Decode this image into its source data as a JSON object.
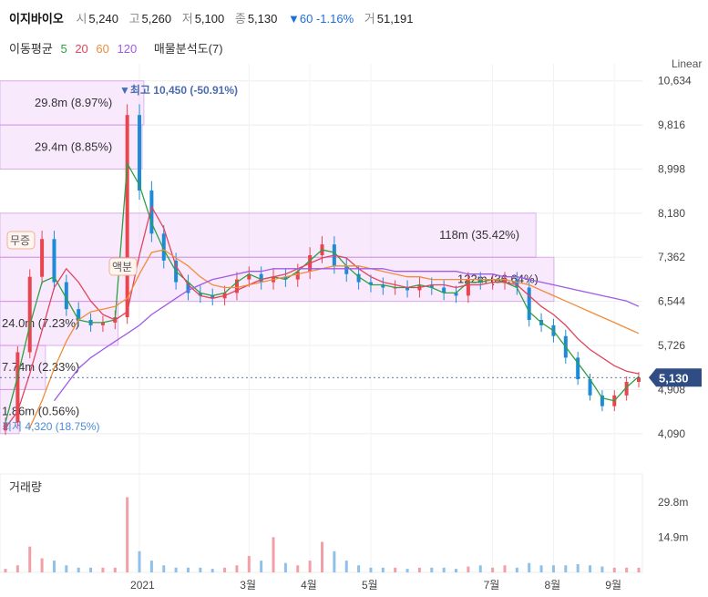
{
  "header": {
    "name": "이지바이오",
    "open_label": "시",
    "open": "5,240",
    "high_label": "고",
    "high": "5,260",
    "low_label": "저",
    "low": "5,100",
    "close_label": "종",
    "close": "5,130",
    "change": "▼60 -1.16%",
    "volume_label": "거",
    "volume": "51,191"
  },
  "ma_legend": {
    "title": "이동평균",
    "periods": [
      {
        "label": "5",
        "color": "#2ea043"
      },
      {
        "label": "20",
        "color": "#e0455c"
      },
      {
        "label": "60",
        "color": "#f08c3c"
      },
      {
        "label": "120",
        "color": "#a05ae6"
      }
    ],
    "profile_label": "매물분석도(7)"
  },
  "chart_data": {
    "type": "candlestick",
    "scale_label": "Linear",
    "yticks": [
      "10,634",
      "9,816",
      "8,998",
      "8,180",
      "7,362",
      "6,544",
      "5,726",
      "4,908",
      "4,090"
    ],
    "ylim": [
      3850,
      10950
    ],
    "xticks": [
      "2021",
      "3월",
      "4월",
      "5월",
      "7월",
      "8월",
      "9월"
    ],
    "current_price": "5,130",
    "max_label": "▼최고 10,450 (-50.91%)",
    "min_label": "최저 4,320 (18.75%)",
    "volume_label": "거래량",
    "volume_ticks": [
      "29.8m",
      "14.9m"
    ],
    "volume_ylim": [
      0,
      38
    ],
    "events": [
      "무증",
      "액분"
    ],
    "volume_profile": [
      {
        "label": "29.8m (8.97%)",
        "low": 9816,
        "high": 10634,
        "share": 8.97
      },
      {
        "label": "29.4m (8.85%)",
        "low": 8998,
        "high": 9816,
        "share": 8.85
      },
      {
        "label": "118m (35.42%)",
        "low": 7362,
        "high": 8180,
        "share": 35.42
      },
      {
        "label": "122m (36.64%)",
        "low": 6544,
        "high": 7362,
        "share": 36.64
      },
      {
        "label": "24.0m (7.23%)",
        "low": 5726,
        "high": 6544,
        "share": 7.23
      },
      {
        "label": "7.74m (2.33%)",
        "low": 4908,
        "high": 5726,
        "share": 2.33
      },
      {
        "label": "1.86m (0.56%)",
        "low": 4090,
        "high": 4908,
        "share": 0.56
      }
    ],
    "series": [
      {
        "name": "5",
        "values": [
          4300,
          5150,
          6100,
          6900,
          7000,
          6600,
          6200,
          6150,
          6150,
          6200,
          9100,
          8700,
          8000,
          7500,
          7100,
          6900,
          6700,
          6650,
          6700,
          6900,
          7050,
          6950,
          7000,
          6950,
          7100,
          7300,
          7500,
          7450,
          7200,
          7000,
          6850,
          6850,
          6800,
          6800,
          6850,
          6800,
          6700,
          6700,
          6900,
          6900,
          6950,
          6900,
          6800,
          6350,
          6150,
          6000,
          5700,
          5400,
          5100,
          4750,
          4700,
          4950,
          5150
        ]
      },
      {
        "name": "20",
        "values": [
          4200,
          4500,
          5200,
          6000,
          6800,
          7150,
          6900,
          6550,
          6300,
          6200,
          6350,
          7400,
          8300,
          7900,
          7200,
          6850,
          6650,
          6600,
          6650,
          6750,
          6850,
          6950,
          7000,
          7050,
          7150,
          7250,
          7350,
          7400,
          7350,
          7150,
          7000,
          6900,
          6850,
          6800,
          6800,
          6850,
          6850,
          6800,
          6850,
          6850,
          6900,
          6900,
          6850,
          6650,
          6450,
          6300,
          6100,
          5850,
          5650,
          5500,
          5350,
          5250,
          5200
        ]
      },
      {
        "name": "60",
        "values": [
          null,
          null,
          4200,
          4700,
          5300,
          5800,
          6200,
          6350,
          6400,
          6450,
          6600,
          7050,
          7450,
          7500,
          7350,
          7200,
          7000,
          6850,
          6800,
          6800,
          6850,
          6900,
          6950,
          7000,
          7050,
          7100,
          7150,
          7200,
          7200,
          7200,
          7150,
          7100,
          7050,
          7000,
          7000,
          6950,
          6950,
          6950,
          6950,
          6950,
          6950,
          6950,
          6900,
          6850,
          6750,
          6650,
          6550,
          6450,
          6350,
          6250,
          6150,
          6050,
          5950
        ]
      },
      {
        "name": "120",
        "values": [
          null,
          null,
          null,
          null,
          4700,
          5000,
          5300,
          5500,
          5650,
          5800,
          5950,
          6100,
          6300,
          6450,
          6600,
          6750,
          6850,
          6950,
          7000,
          7050,
          7100,
          7100,
          7150,
          7150,
          7150,
          7150,
          7150,
          7150,
          7150,
          7150,
          7150,
          7150,
          7100,
          7100,
          7100,
          7100,
          7100,
          7100,
          7050,
          7050,
          7050,
          7000,
          7000,
          6950,
          6900,
          6850,
          6800,
          6750,
          6700,
          6650,
          6600,
          6550,
          6450
        ]
      }
    ],
    "candles_close": [
      4300,
      5600,
      7000,
      7700,
      6900,
      6400,
      6200,
      6100,
      6150,
      6250,
      10000,
      8600,
      7800,
      7300,
      6900,
      6700,
      6650,
      6600,
      6700,
      6950,
      7050,
      6900,
      7000,
      6950,
      7100,
      7400,
      7600,
      7200,
      7050,
      6900,
      6850,
      6800,
      6800,
      6750,
      6850,
      6800,
      6700,
      6650,
      6950,
      6900,
      6900,
      6950,
      6800,
      6200,
      6100,
      5900,
      5500,
      5100,
      4800,
      4600,
      4800,
      5050,
      5130
    ],
    "volumes": [
      1.5,
      3,
      11,
      6,
      5,
      3,
      2,
      2,
      2,
      2,
      32,
      9,
      5,
      3,
      2,
      2,
      2,
      1.5,
      2,
      3,
      7,
      5,
      15,
      4,
      3,
      5,
      13,
      9,
      5,
      3,
      2,
      2,
      2,
      1.5,
      2,
      2,
      2,
      1.5,
      2.5,
      3,
      2,
      3,
      2,
      4,
      3,
      3,
      3,
      3.5,
      3,
      2.5,
      2,
      2,
      2
    ]
  }
}
